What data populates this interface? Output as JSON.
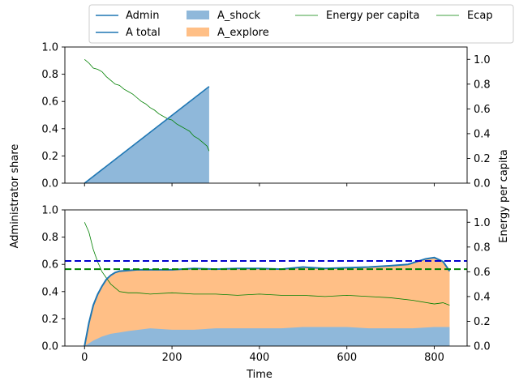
{
  "chart_data": {
    "type": "line",
    "shared_xlabel": "Time",
    "left_ylabel": "Administrator share",
    "right_ylabel": "Energy per capita",
    "legend": {
      "placement": "top, above plots, 4 columns",
      "entries": [
        {
          "label": "Admin",
          "kind": "line",
          "color": "#1f77b4"
        },
        {
          "label": "A total",
          "kind": "line",
          "color": "#1f77b4"
        },
        {
          "label": "A_shock",
          "kind": "patch",
          "color": "#8fb8da"
        },
        {
          "label": "A_explore",
          "kind": "patch",
          "color": "#ffbf86"
        },
        {
          "label": "Energy per capita",
          "kind": "line",
          "color": "#008000"
        },
        {
          "label": "Ecap",
          "kind": "line",
          "color": "#008000"
        }
      ]
    },
    "colors": {
      "admin": "#1f77b4",
      "shock_fill": "#8fb8da",
      "explore_fill": "#ffbf86",
      "energy": "#008000",
      "ref_blue": "#0000cc",
      "ref_green": "#008000"
    },
    "panels": [
      {
        "name": "top",
        "xlim": [
          -45,
          875
        ],
        "ylim_left": [
          0,
          1.0
        ],
        "ylim_right": [
          0,
          1.1
        ],
        "x_ticks": [
          0,
          200,
          400,
          600,
          800
        ],
        "x_ticklabels_shown": false,
        "y_ticks_left": [
          "0.0",
          "0.2",
          "0.4",
          "0.6",
          "0.8",
          "1.0"
        ],
        "y_ticks_right": [
          "0.0",
          "0.2",
          "0.4",
          "0.6",
          "0.8",
          "1.0"
        ],
        "admin_line": {
          "x": [
            0,
            285
          ],
          "y": [
            0,
            0.71
          ]
        },
        "shock_fill": {
          "x": [
            0,
            285
          ],
          "y": [
            0,
            0.71
          ]
        },
        "energy": {
          "x": [
            0,
            10,
            20,
            30,
            40,
            50,
            60,
            70,
            80,
            90,
            100,
            110,
            120,
            130,
            140,
            150,
            160,
            170,
            180,
            190,
            200,
            210,
            220,
            230,
            240,
            250,
            260,
            270,
            280,
            285
          ],
          "y": [
            1.0,
            0.97,
            0.93,
            0.92,
            0.9,
            0.86,
            0.83,
            0.8,
            0.79,
            0.76,
            0.74,
            0.72,
            0.69,
            0.66,
            0.64,
            0.61,
            0.59,
            0.56,
            0.54,
            0.52,
            0.51,
            0.48,
            0.46,
            0.44,
            0.42,
            0.38,
            0.36,
            0.33,
            0.3,
            0.26
          ]
        }
      },
      {
        "name": "bottom",
        "xlim": [
          -45,
          875
        ],
        "ylim_left": [
          0,
          1.0
        ],
        "ylim_right": [
          0,
          1.1
        ],
        "x_ticks": [
          "0",
          "200",
          "400",
          "600",
          "800"
        ],
        "y_ticks_left": [
          "0.0",
          "0.2",
          "0.4",
          "0.6",
          "0.8",
          "1.0"
        ],
        "y_ticks_right": [
          "0.0",
          "0.2",
          "0.4",
          "0.6",
          "0.8",
          "1.0"
        ],
        "hline_blue": 0.625,
        "hline_green": 0.565,
        "a_total": {
          "x": [
            0,
            10,
            20,
            30,
            40,
            50,
            60,
            70,
            80,
            100,
            120,
            150,
            200,
            250,
            300,
            350,
            400,
            450,
            500,
            550,
            600,
            650,
            700,
            740,
            780,
            800,
            820,
            835
          ],
          "y": [
            0,
            0.17,
            0.3,
            0.38,
            0.44,
            0.49,
            0.52,
            0.54,
            0.55,
            0.555,
            0.56,
            0.56,
            0.56,
            0.57,
            0.565,
            0.57,
            0.57,
            0.565,
            0.58,
            0.57,
            0.575,
            0.58,
            0.59,
            0.6,
            0.64,
            0.65,
            0.62,
            0.55
          ]
        },
        "a_shock": {
          "x": [
            0,
            10,
            20,
            40,
            60,
            80,
            100,
            150,
            200,
            250,
            300,
            350,
            400,
            450,
            500,
            550,
            600,
            650,
            700,
            750,
            800,
            835
          ],
          "y": [
            0,
            0.02,
            0.04,
            0.07,
            0.09,
            0.1,
            0.11,
            0.13,
            0.12,
            0.12,
            0.13,
            0.13,
            0.13,
            0.13,
            0.14,
            0.14,
            0.14,
            0.13,
            0.13,
            0.13,
            0.14,
            0.14
          ]
        },
        "energy": {
          "x": [
            0,
            10,
            20,
            30,
            40,
            50,
            60,
            70,
            80,
            100,
            120,
            150,
            200,
            250,
            300,
            350,
            400,
            450,
            500,
            550,
            600,
            650,
            700,
            750,
            800,
            820,
            835
          ],
          "y": [
            1.0,
            0.92,
            0.78,
            0.68,
            0.6,
            0.55,
            0.5,
            0.47,
            0.44,
            0.43,
            0.43,
            0.42,
            0.43,
            0.42,
            0.42,
            0.41,
            0.42,
            0.41,
            0.41,
            0.4,
            0.41,
            0.4,
            0.39,
            0.37,
            0.34,
            0.35,
            0.33
          ]
        }
      }
    ]
  }
}
